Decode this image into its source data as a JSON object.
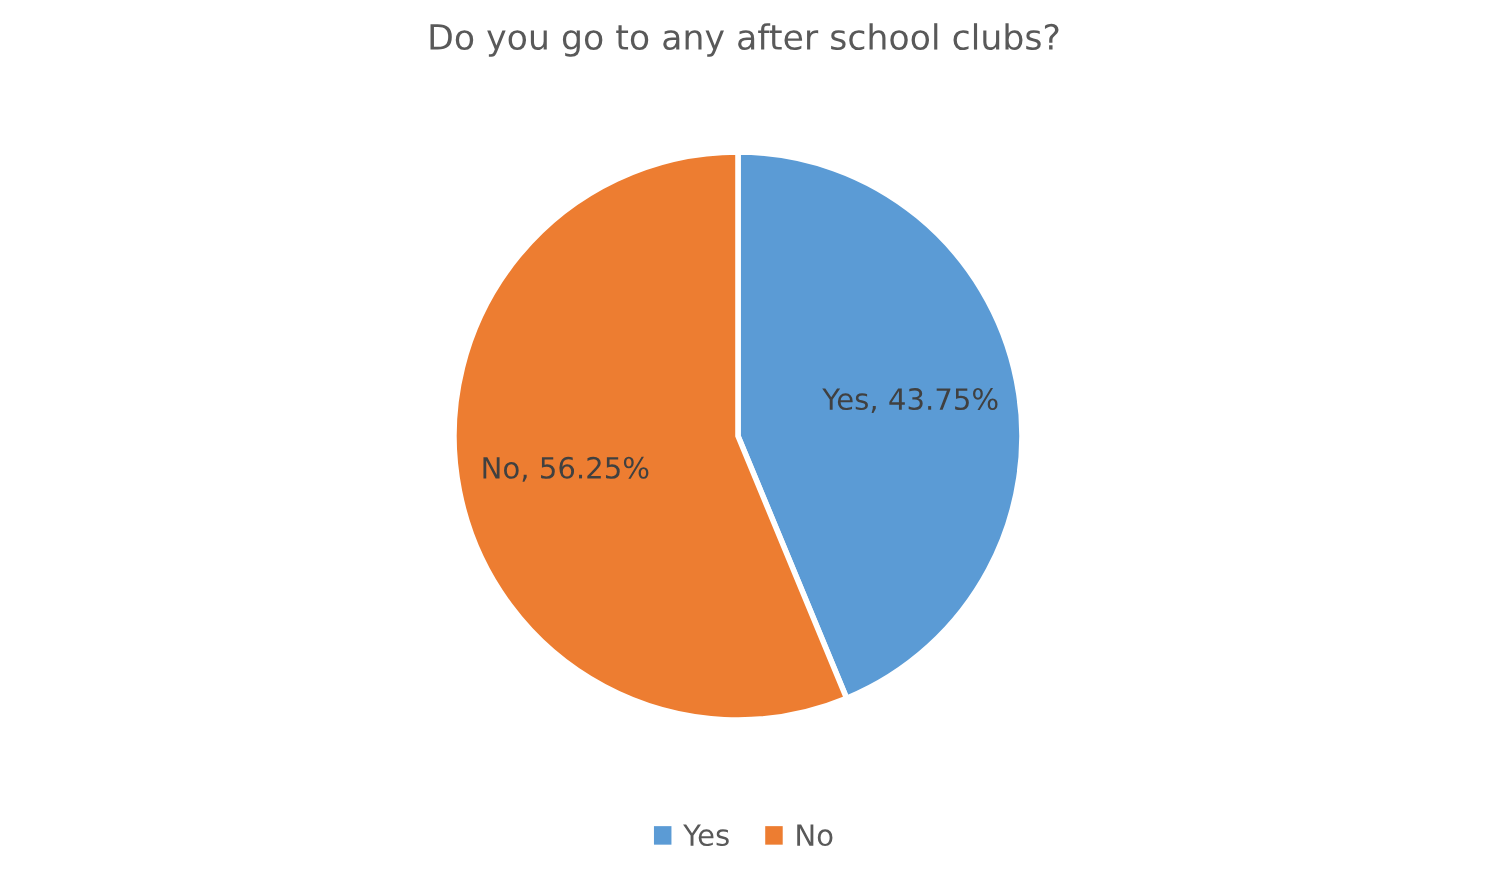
{
  "chart_data": {
    "type": "pie",
    "title": "Do you go to any after school clubs?",
    "categories": [
      "Yes",
      "No"
    ],
    "values": [
      43.75,
      56.25
    ],
    "colors": [
      "#5b9bd5",
      "#ed7d31"
    ],
    "value_labels": [
      "Yes, 43.75%",
      "No, 56.25%"
    ],
    "legend": "bottom"
  }
}
